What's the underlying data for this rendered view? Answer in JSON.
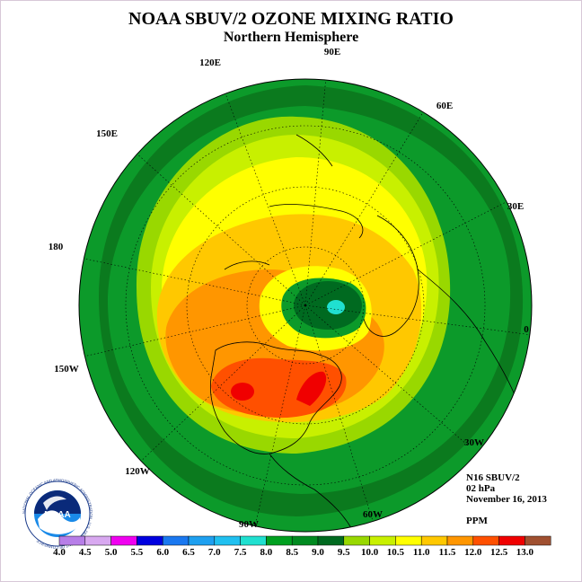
{
  "header": {
    "title": "NOAA SBUV/2 OZONE MIXING RATIO",
    "subtitle": "Northern Hemisphere"
  },
  "longitude_labels": [
    "90E",
    "60E",
    "30E",
    "0",
    "30W",
    "60W",
    "90W",
    "120W",
    "150W",
    "180",
    "150E",
    "120E"
  ],
  "info": {
    "satellite": "N16 SBUV/2",
    "level": "02 hPa",
    "date": "November 16, 2013",
    "unit": "PPM"
  },
  "colorbar": {
    "ticks": [
      "4.0",
      "4.5",
      "5.0",
      "5.5",
      "6.0",
      "6.5",
      "7.0",
      "7.5",
      "8.0",
      "8.5",
      "9.0",
      "9.5",
      "10.0",
      "10.5",
      "11.0",
      "11.5",
      "12.0",
      "12.5",
      "13.0"
    ],
    "colors": [
      "#b77ee8",
      "#d8a8f0",
      "#f000f0",
      "#0000e0",
      "#1a78f0",
      "#1ea0f0",
      "#20c0f0",
      "#20e0d0",
      "#00a020",
      "#008a20",
      "#006a20",
      "#98d800",
      "#c8f000",
      "#ffff00",
      "#ffc800",
      "#ff9600",
      "#ff5000",
      "#f00000",
      "#a05030"
    ]
  },
  "logo": {
    "text": "NOAA",
    "ring_text": "NATIONAL OCEANIC AND ATMOSPHERIC ADMINISTRATION · U.S. DEPARTMENT OF COMMERCE"
  },
  "map_colors": {
    "outer_dark": "#0b7a1e",
    "green": "#0c9a2a",
    "light_green": "#99d800",
    "yellow_green": "#c8f000",
    "yellow": "#ffff00",
    "orange_light": "#ffc800",
    "orange": "#ff9600",
    "red_orange": "#ff5000",
    "red": "#f00000",
    "dark_green": "#006a20",
    "cyan": "#20e0d0"
  }
}
